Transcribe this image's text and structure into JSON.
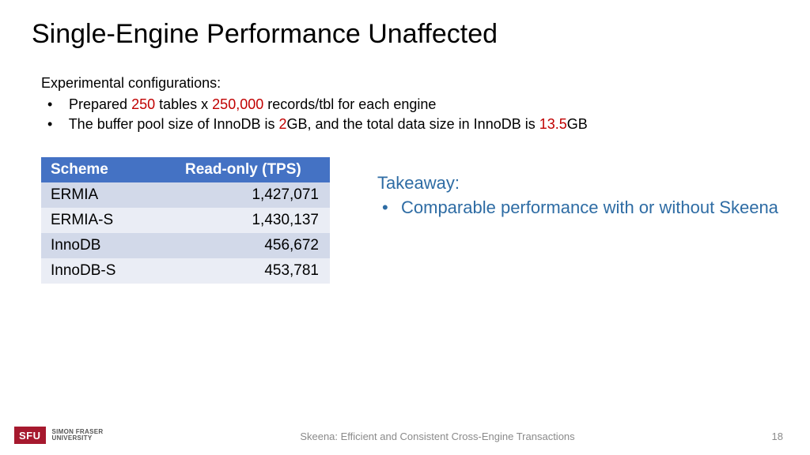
{
  "title": "Single-Engine Performance Unaffected",
  "config": {
    "heading": "Experimental configurations:",
    "item1": {
      "pre": "Prepared ",
      "v1": "250",
      "mid": " tables x ",
      "v2": "250,000",
      "post": " records/tbl for each engine"
    },
    "item2": {
      "pre": "The buffer pool size of InnoDB is ",
      "v1": "2",
      "mid": "GB, and the total data size in InnoDB is ",
      "v2": "13.5",
      "post": "GB"
    }
  },
  "table": {
    "columns": [
      "Scheme",
      "Read-only (TPS)"
    ],
    "rows": [
      {
        "scheme": "ERMIA",
        "tps": "1,427,071"
      },
      {
        "scheme": "ERMIA-S",
        "tps": "1,430,137"
      },
      {
        "scheme": "InnoDB",
        "tps": "456,672"
      },
      {
        "scheme": "InnoDB-S",
        "tps": "453,781"
      }
    ],
    "header_bg": "#4472c4",
    "header_fg": "#ffffff",
    "row_odd_bg": "#d2d9e9",
    "row_even_bg": "#eaedf5"
  },
  "takeaway": {
    "heading": "Takeaway:",
    "item": "Comparable performance with or without Skeena",
    "color": "#2e6ca4"
  },
  "footer": {
    "logo_mark": "SFU",
    "logo_line1": "SIMON FRASER",
    "logo_line2": "UNIVERSITY",
    "caption": "Skeena: Efficient and Consistent Cross-Engine Transactions",
    "page": "18"
  },
  "colors": {
    "highlight": "#c00000"
  }
}
